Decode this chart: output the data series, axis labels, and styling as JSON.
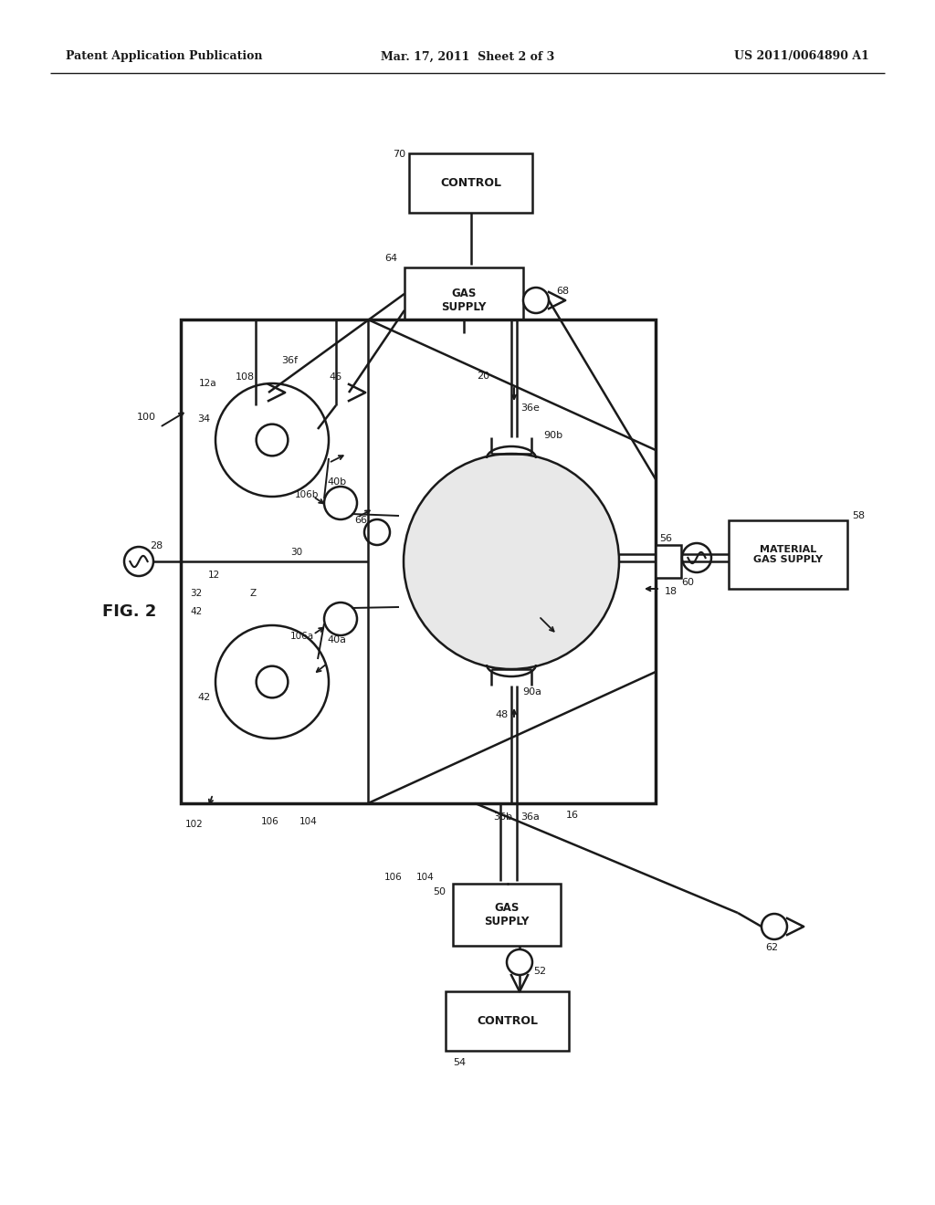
{
  "bg_color": "#ffffff",
  "lc": "#1a1a1a",
  "header_left": "Patent Application Publication",
  "header_mid": "Mar. 17, 2011  Sheet 2 of 3",
  "header_right": "US 2011/0064890 A1",
  "figsize": [
    10.24,
    13.2
  ],
  "dpi": 100
}
